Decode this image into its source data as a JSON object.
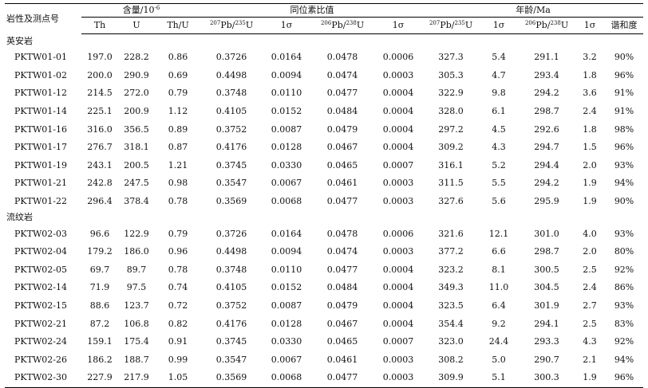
{
  "header": {
    "rock": "岩性及测点号",
    "content_group_label": "含量/10",
    "content_group_exp": "-6",
    "ratio_group": "同位素比值",
    "age_group": "年龄/Ma",
    "th": "Th",
    "u": "U",
    "thu": "Th/U",
    "pb207_sup": "207",
    "pb207_text": "Pb/",
    "u235_sup": "235",
    "u235_text": "U",
    "pb206_sup": "206",
    "pb206_text": "Pb/",
    "u238_sup": "238",
    "u238_text": "U",
    "sigma": "1σ",
    "concordance": "谐和度"
  },
  "sections": [
    {
      "title": "英安岩",
      "rows": [
        [
          "PKTW01-01",
          "197.0",
          "228.2",
          "0.86",
          "0.3726",
          "0.0164",
          "0.0478",
          "0.0006",
          "327.3",
          "5.4",
          "291.1",
          "3.2",
          "90%"
        ],
        [
          "PKTW01-02",
          "200.0",
          "290.9",
          "0.69",
          "0.4498",
          "0.0094",
          "0.0474",
          "0.0003",
          "305.3",
          "4.7",
          "293.4",
          "1.8",
          "96%"
        ],
        [
          "PKTW01-12",
          "214.5",
          "272.0",
          "0.79",
          "0.3748",
          "0.0110",
          "0.0477",
          "0.0004",
          "322.9",
          "9.8",
          "294.2",
          "3.6",
          "91%"
        ],
        [
          "PKTW01-14",
          "225.1",
          "200.9",
          "1.12",
          "0.4105",
          "0.0152",
          "0.0484",
          "0.0004",
          "328.0",
          "6.1",
          "298.7",
          "2.4",
          "91%"
        ],
        [
          "PKTW01-16",
          "316.0",
          "356.5",
          "0.89",
          "0.3752",
          "0.0087",
          "0.0479",
          "0.0004",
          "297.2",
          "4.5",
          "292.6",
          "1.8",
          "98%"
        ],
        [
          "PKTW01-17",
          "276.7",
          "318.1",
          "0.87",
          "0.4176",
          "0.0128",
          "0.0467",
          "0.0004",
          "309.2",
          "4.3",
          "294.7",
          "1.5",
          "96%"
        ],
        [
          "PKTW01-19",
          "243.1",
          "200.5",
          "1.21",
          "0.3745",
          "0.0330",
          "0.0465",
          "0.0007",
          "316.1",
          "5.2",
          "294.4",
          "2.0",
          "93%"
        ],
        [
          "PKTW01-21",
          "242.8",
          "247.5",
          "0.98",
          "0.3547",
          "0.0067",
          "0.0461",
          "0.0003",
          "311.5",
          "5.5",
          "294.2",
          "1.9",
          "94%"
        ],
        [
          "PKTW01-22",
          "296.4",
          "378.4",
          "0.78",
          "0.3569",
          "0.0068",
          "0.0477",
          "0.0003",
          "327.6",
          "5.6",
          "295.9",
          "1.9",
          "90%"
        ]
      ]
    },
    {
      "title": "流纹岩",
      "rows": [
        [
          "PKTW02-03",
          "96.6",
          "122.9",
          "0.79",
          "0.3726",
          "0.0164",
          "0.0478",
          "0.0006",
          "321.6",
          "12.1",
          "301.0",
          "4.0",
          "93%"
        ],
        [
          "PKTW02-04",
          "179.2",
          "186.0",
          "0.96",
          "0.4498",
          "0.0094",
          "0.0474",
          "0.0003",
          "377.2",
          "6.6",
          "298.7",
          "2.0",
          "80%"
        ],
        [
          "PKTW02-05",
          "69.7",
          "89.7",
          "0.78",
          "0.3748",
          "0.0110",
          "0.0477",
          "0.0004",
          "323.2",
          "8.1",
          "300.5",
          "2.5",
          "92%"
        ],
        [
          "PKTW02-14",
          "71.9",
          "97.5",
          "0.74",
          "0.4105",
          "0.0152",
          "0.0484",
          "0.0004",
          "349.3",
          "11.0",
          "304.5",
          "2.4",
          "86%"
        ],
        [
          "PKTW02-15",
          "88.6",
          "123.7",
          "0.72",
          "0.3752",
          "0.0087",
          "0.0479",
          "0.0004",
          "323.5",
          "6.4",
          "301.9",
          "2.7",
          "93%"
        ],
        [
          "PKTW02-21",
          "87.2",
          "106.8",
          "0.82",
          "0.4176",
          "0.0128",
          "0.0467",
          "0.0004",
          "354.4",
          "9.2",
          "294.1",
          "2.5",
          "83%"
        ],
        [
          "PKTW02-24",
          "159.1",
          "175.4",
          "0.91",
          "0.3745",
          "0.0330",
          "0.0465",
          "0.0007",
          "323.0",
          "24.4",
          "293.3",
          "4.3",
          "92%"
        ],
        [
          "PKTW02-26",
          "186.2",
          "188.7",
          "0.99",
          "0.3547",
          "0.0067",
          "0.0461",
          "0.0003",
          "308.2",
          "5.0",
          "290.7",
          "2.1",
          "94%"
        ],
        [
          "PKTW02-30",
          "227.9",
          "217.9",
          "1.05",
          "0.3569",
          "0.0068",
          "0.0477",
          "0.0003",
          "309.9",
          "5.1",
          "300.3",
          "1.9",
          "96%"
        ]
      ]
    }
  ]
}
